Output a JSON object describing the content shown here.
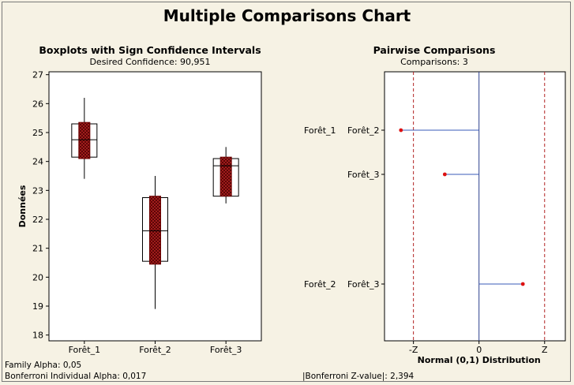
{
  "title": "Multiple Comparisons Chart",
  "footer": {
    "family_alpha": "Family Alpha: 0,05",
    "individual_alpha": "Bonferroni Individual Alpha: 0,017",
    "z_value": "|Bonferroni Z-value|: 2,394"
  },
  "chart_data": [
    {
      "type": "boxplot",
      "title": "Boxplots with Sign Confidence Intervals",
      "subtitle": "Desired Confidence: 90,951",
      "ylabel": "Données",
      "ylim": [
        17.8,
        27.1
      ],
      "yticks": [
        18,
        19,
        20,
        21,
        22,
        23,
        24,
        25,
        26,
        27
      ],
      "categories": [
        "Forêt_1",
        "Forêt_2",
        "Forêt_3"
      ],
      "boxes": [
        {
          "min": 23.4,
          "q1": 24.15,
          "median": 24.75,
          "q3": 25.3,
          "max": 26.2,
          "ci": [
            24.1,
            25.35
          ]
        },
        {
          "min": 18.9,
          "q1": 20.55,
          "median": 21.6,
          "q3": 22.75,
          "max": 23.5,
          "ci": [
            20.45,
            22.8
          ]
        },
        {
          "min": 22.55,
          "q1": 22.8,
          "median": 23.85,
          "q3": 24.1,
          "max": 24.5,
          "ci": [
            22.8,
            24.15
          ]
        }
      ],
      "colors": {
        "ci_fill": "#b22222",
        "ci_stroke": "#6b0000",
        "box": "#000000"
      }
    },
    {
      "type": "interval",
      "title": "Pairwise Comparisons",
      "subtitle": "Comparisons: 3",
      "xlabel": "Normal (0,1) Distribution",
      "xlim": [
        -3.45,
        3.15
      ],
      "xticks": [
        {
          "value": -2.394,
          "label": "-Z"
        },
        {
          "value": 0,
          "label": "0"
        },
        {
          "value": 2.394,
          "label": "Z"
        }
      ],
      "critical_value": 2.394,
      "comparisons": [
        {
          "group_a": "Forêt_1",
          "group_b": "Forêt_2",
          "z": -2.85
        },
        {
          "group_a": "",
          "group_b": "Forêt_3",
          "z": -1.25
        },
        {
          "group_a": "Forêt_2",
          "group_b": "Forêt_3",
          "z": 1.6
        }
      ],
      "colors": {
        "line": "#3a5bb8",
        "point": "#dd1111",
        "ref": "#b22222"
      }
    }
  ]
}
